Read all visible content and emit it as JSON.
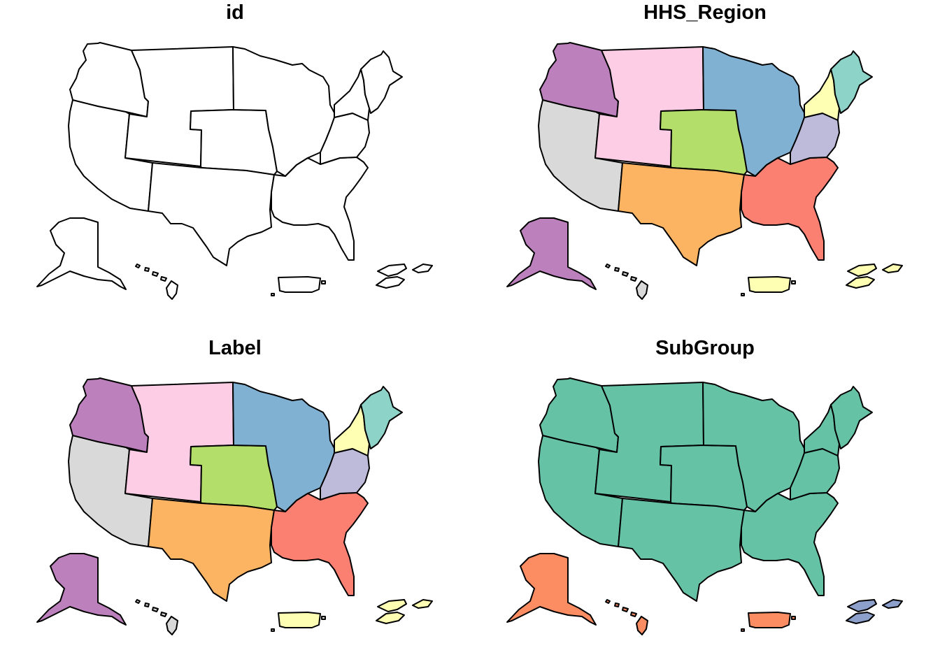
{
  "colors": {
    "outline": "#000000",
    "white": "#ffffff",
    "purple": "#bc80bd",
    "pink": "#fccde5",
    "blue": "#80b1d3",
    "lightyellow": "#ffffb3",
    "teal": "#8dd3c7",
    "lavender": "#bebada",
    "grey": "#d9d9d9",
    "green": "#b3de69",
    "orange": "#fdb462",
    "salmon": "#fb8072",
    "subgroup_green": "#66c2a5",
    "subgroup_orange": "#fc8d62",
    "subgroup_blue": "#8da0cb"
  },
  "panels": [
    {
      "id": "p1",
      "title": "id",
      "scheme": "outline"
    },
    {
      "id": "p2",
      "title": "HHS_Region",
      "scheme": "region"
    },
    {
      "id": "p3",
      "title": "Label",
      "scheme": "region"
    },
    {
      "id": "p4",
      "title": "SubGroup",
      "scheme": "subgroup"
    }
  ],
  "region_scheme": {
    "NW": "purple",
    "MT": "pink",
    "MW": "blue",
    "NY": "lightyellow",
    "NE": "teal",
    "PA": "lavender",
    "CA": "grey",
    "KS": "green",
    "TX": "orange",
    "SE": "salmon",
    "AK": "purple",
    "HI": "grey",
    "PR": "lightyellow",
    "VI": "lightyellow"
  },
  "subgroup_scheme": {
    "mainland": "subgroup_green",
    "AK": "subgroup_orange",
    "HI": "subgroup_orange",
    "PR": "subgroup_orange",
    "VI": "subgroup_blue"
  }
}
